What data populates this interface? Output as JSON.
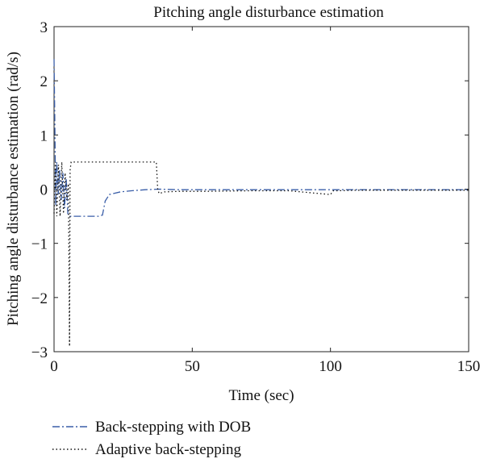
{
  "chart_data": {
    "type": "line",
    "title": "Pitching angle disturbance estimation",
    "xlabel": "Time (sec)",
    "ylabel": "Pitching angle disturbance estimation (rad/s)",
    "xlim": [
      0,
      150
    ],
    "ylim": [
      -3,
      3
    ],
    "xticks": [
      0,
      50,
      100,
      150
    ],
    "yticks": [
      -3,
      -2,
      -1,
      0,
      1,
      2,
      3
    ],
    "xtick_labels": [
      "0",
      "50",
      "100",
      "150"
    ],
    "ytick_labels": [
      "−3",
      "−2",
      "−1",
      "0",
      "1",
      "2",
      "3"
    ],
    "grid": false,
    "legend_position": "bottom-left outside",
    "series": [
      {
        "name": "Back-stepping with DOB",
        "color": "#3a5ea8",
        "style": "dash-dot",
        "x": [
          0,
          0.3,
          0.6,
          1.0,
          1.5,
          2.0,
          2.6,
          3.2,
          3.8,
          4.4,
          5.0,
          5.5,
          6,
          8,
          10,
          12,
          14,
          16,
          17.5,
          18.5,
          20,
          24,
          28,
          33,
          38,
          45,
          60,
          80,
          100,
          120,
          150
        ],
        "y": [
          2.4,
          1.2,
          -0.3,
          0.5,
          -0.1,
          0.35,
          -0.2,
          0.3,
          -0.35,
          0.2,
          -0.45,
          -0.5,
          -0.5,
          -0.5,
          -0.5,
          -0.5,
          -0.5,
          -0.5,
          -0.48,
          -0.22,
          -0.1,
          -0.05,
          -0.03,
          -0.01,
          0.0,
          -0.01,
          -0.01,
          -0.01,
          -0.01,
          -0.01,
          -0.01
        ]
      },
      {
        "name": "Adaptive back-stepping",
        "color": "#111111",
        "style": "dotted",
        "x": [
          0,
          0.5,
          1.0,
          1.6,
          2.2,
          2.8,
          3.4,
          4.0,
          4.6,
          5.2,
          5.6,
          5.8,
          6.2,
          6.8,
          10,
          20,
          30,
          37,
          37.5,
          38,
          40,
          45,
          55,
          70,
          85,
          100,
          101,
          102,
          110,
          130,
          150
        ],
        "y": [
          -0.45,
          0.5,
          -0.5,
          0.45,
          -0.5,
          0.5,
          -0.45,
          0.3,
          -0.2,
          0.1,
          -2.9,
          0.35,
          0.5,
          0.5,
          0.5,
          0.5,
          0.5,
          0.5,
          0.0,
          -0.08,
          -0.05,
          -0.04,
          -0.04,
          -0.03,
          -0.03,
          -0.1,
          -0.03,
          -0.03,
          -0.02,
          -0.02,
          -0.02
        ]
      }
    ]
  }
}
